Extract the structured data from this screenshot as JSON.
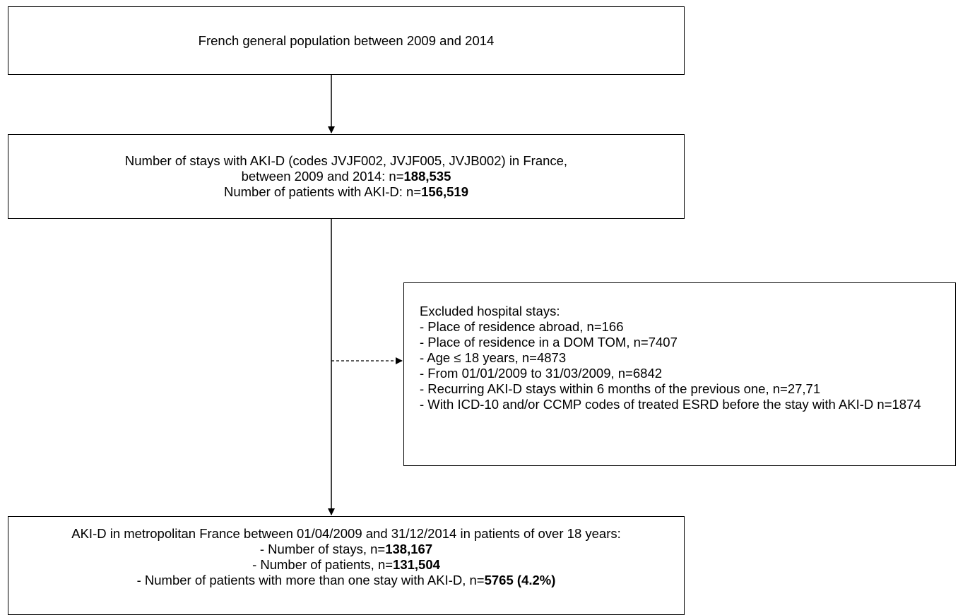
{
  "boxes": {
    "population": {
      "line1": "French general population between 2009 and 2014"
    },
    "stays": {
      "line1": "Number of stays with AKI-D (codes JVJF002, JVJF005, JVJB002) in France,",
      "line2_prefix": "between 2009 and 2014: n=",
      "line2_value": "188,535",
      "line3_prefix": "Number of patients with AKI-D: n=",
      "line3_value": "156,519"
    },
    "excluded": {
      "title": "Excluded hospital stays:",
      "items": [
        "- Place of residence abroad, n=166",
        "- Place of residence in a DOM TOM, n=7407",
        "- Age ≤ 18 years, n=4873",
        "- From 01/01/2009 to 31/03/2009, n=6842",
        "- Recurring AKI-D stays within 6 months of the previous one,   n=27,71",
        "- With ICD-10 and/or CCMP codes of treated ESRD before the stay with AKI-D n=1874"
      ]
    },
    "final": {
      "line1": "AKI-D in metropolitan France between 01/04/2009 and 31/12/2014 in patients of over 18 years:",
      "line2_prefix": "- Number of stays, n=",
      "line2_value": "138,167",
      "line3_prefix": "- Number of patients, n=",
      "line3_value": "131,504",
      "line4_prefix": "- Number of patients with more than one stay with AKI-D, n=",
      "line4_value": "5765 (4.2%)"
    }
  }
}
